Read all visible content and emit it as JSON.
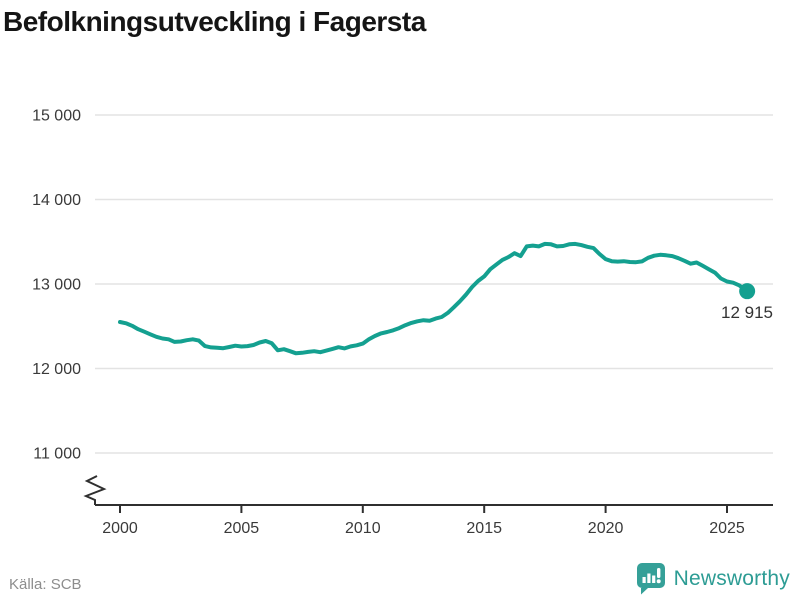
{
  "header": {
    "title": "Befolkningsutveckling i Fagersta"
  },
  "footer": {
    "source": "Källa: SCB",
    "brand": {
      "name": "Newsworthy"
    }
  },
  "colors": {
    "line": "#14a090",
    "end_dot": "#14a090",
    "grid": "#e3e3e3",
    "axis": "#2f2f2f",
    "tick_text": "#3a3a3a",
    "title_text": "#151515",
    "source_text": "#8d8d8d",
    "brand_teal": "#35a098",
    "end_label_text": "#333333"
  },
  "chart_data": {
    "type": "line",
    "title": "Befolkningsutveckling i Fagersta",
    "xlabel": "",
    "ylabel": "",
    "xlim": [
      1999,
      2027
    ],
    "ylim": [
      11000,
      15000
    ],
    "grid": "horizontal",
    "legend": "none",
    "y_axis_break": true,
    "y_ticks": [
      {
        "value": 11000,
        "label": "11 000"
      },
      {
        "value": 12000,
        "label": "12 000"
      },
      {
        "value": 13000,
        "label": "13 000"
      },
      {
        "value": 14000,
        "label": "14 000"
      },
      {
        "value": 15000,
        "label": "15 000"
      }
    ],
    "x_ticks": [
      {
        "value": 2000,
        "label": "2000"
      },
      {
        "value": 2005,
        "label": "2005"
      },
      {
        "value": 2010,
        "label": "2010"
      },
      {
        "value": 2015,
        "label": "2015"
      },
      {
        "value": 2020,
        "label": "2020"
      },
      {
        "value": 2025,
        "label": "2025"
      }
    ],
    "end_point": {
      "x": 2025.83,
      "y": 12915,
      "label": "12 915"
    },
    "series": [
      {
        "points": [
          [
            2000.0,
            12550
          ],
          [
            2000.25,
            12535
          ],
          [
            2000.5,
            12505
          ],
          [
            2000.75,
            12465
          ],
          [
            2001.0,
            12435
          ],
          [
            2001.25,
            12405
          ],
          [
            2001.5,
            12375
          ],
          [
            2001.75,
            12355
          ],
          [
            2002.0,
            12345
          ],
          [
            2002.25,
            12315
          ],
          [
            2002.5,
            12320
          ],
          [
            2002.75,
            12335
          ],
          [
            2003.0,
            12345
          ],
          [
            2003.25,
            12330
          ],
          [
            2003.5,
            12265
          ],
          [
            2003.75,
            12250
          ],
          [
            2004.0,
            12245
          ],
          [
            2004.25,
            12240
          ],
          [
            2004.5,
            12255
          ],
          [
            2004.75,
            12270
          ],
          [
            2005.0,
            12260
          ],
          [
            2005.25,
            12265
          ],
          [
            2005.5,
            12278
          ],
          [
            2005.75,
            12308
          ],
          [
            2006.0,
            12325
          ],
          [
            2006.25,
            12298
          ],
          [
            2006.5,
            12215
          ],
          [
            2006.75,
            12228
          ],
          [
            2007.0,
            12205
          ],
          [
            2007.25,
            12180
          ],
          [
            2007.5,
            12186
          ],
          [
            2007.75,
            12196
          ],
          [
            2008.0,
            12205
          ],
          [
            2008.25,
            12193
          ],
          [
            2008.5,
            12212
          ],
          [
            2008.75,
            12232
          ],
          [
            2009.0,
            12252
          ],
          [
            2009.25,
            12238
          ],
          [
            2009.5,
            12262
          ],
          [
            2009.75,
            12275
          ],
          [
            2010.0,
            12295
          ],
          [
            2010.25,
            12345
          ],
          [
            2010.5,
            12385
          ],
          [
            2010.75,
            12415
          ],
          [
            2011.0,
            12432
          ],
          [
            2011.25,
            12452
          ],
          [
            2011.5,
            12478
          ],
          [
            2011.75,
            12512
          ],
          [
            2012.0,
            12540
          ],
          [
            2012.25,
            12558
          ],
          [
            2012.5,
            12572
          ],
          [
            2012.75,
            12565
          ],
          [
            2013.0,
            12590
          ],
          [
            2013.25,
            12610
          ],
          [
            2013.5,
            12658
          ],
          [
            2013.75,
            12725
          ],
          [
            2014.0,
            12795
          ],
          [
            2014.25,
            12875
          ],
          [
            2014.5,
            12965
          ],
          [
            2014.75,
            13035
          ],
          [
            2015.0,
            13090
          ],
          [
            2015.25,
            13175
          ],
          [
            2015.5,
            13230
          ],
          [
            2015.75,
            13285
          ],
          [
            2016.0,
            13320
          ],
          [
            2016.25,
            13365
          ],
          [
            2016.5,
            13330
          ],
          [
            2016.75,
            13445
          ],
          [
            2017.0,
            13455
          ],
          [
            2017.25,
            13445
          ],
          [
            2017.5,
            13475
          ],
          [
            2017.75,
            13470
          ],
          [
            2018.0,
            13445
          ],
          [
            2018.25,
            13450
          ],
          [
            2018.5,
            13470
          ],
          [
            2018.75,
            13475
          ],
          [
            2019.0,
            13460
          ],
          [
            2019.25,
            13440
          ],
          [
            2019.5,
            13425
          ],
          [
            2019.75,
            13355
          ],
          [
            2020.0,
            13295
          ],
          [
            2020.25,
            13270
          ],
          [
            2020.5,
            13265
          ],
          [
            2020.75,
            13270
          ],
          [
            2021.0,
            13260
          ],
          [
            2021.25,
            13258
          ],
          [
            2021.5,
            13268
          ],
          [
            2021.75,
            13310
          ],
          [
            2022.0,
            13335
          ],
          [
            2022.25,
            13345
          ],
          [
            2022.5,
            13340
          ],
          [
            2022.75,
            13330
          ],
          [
            2023.0,
            13305
          ],
          [
            2023.25,
            13275
          ],
          [
            2023.5,
            13240
          ],
          [
            2023.75,
            13255
          ],
          [
            2024.0,
            13215
          ],
          [
            2024.25,
            13175
          ],
          [
            2024.5,
            13135
          ],
          [
            2024.75,
            13065
          ],
          [
            2025.0,
            13030
          ],
          [
            2025.25,
            13015
          ],
          [
            2025.5,
            12985
          ],
          [
            2025.83,
            12915
          ]
        ]
      }
    ]
  }
}
